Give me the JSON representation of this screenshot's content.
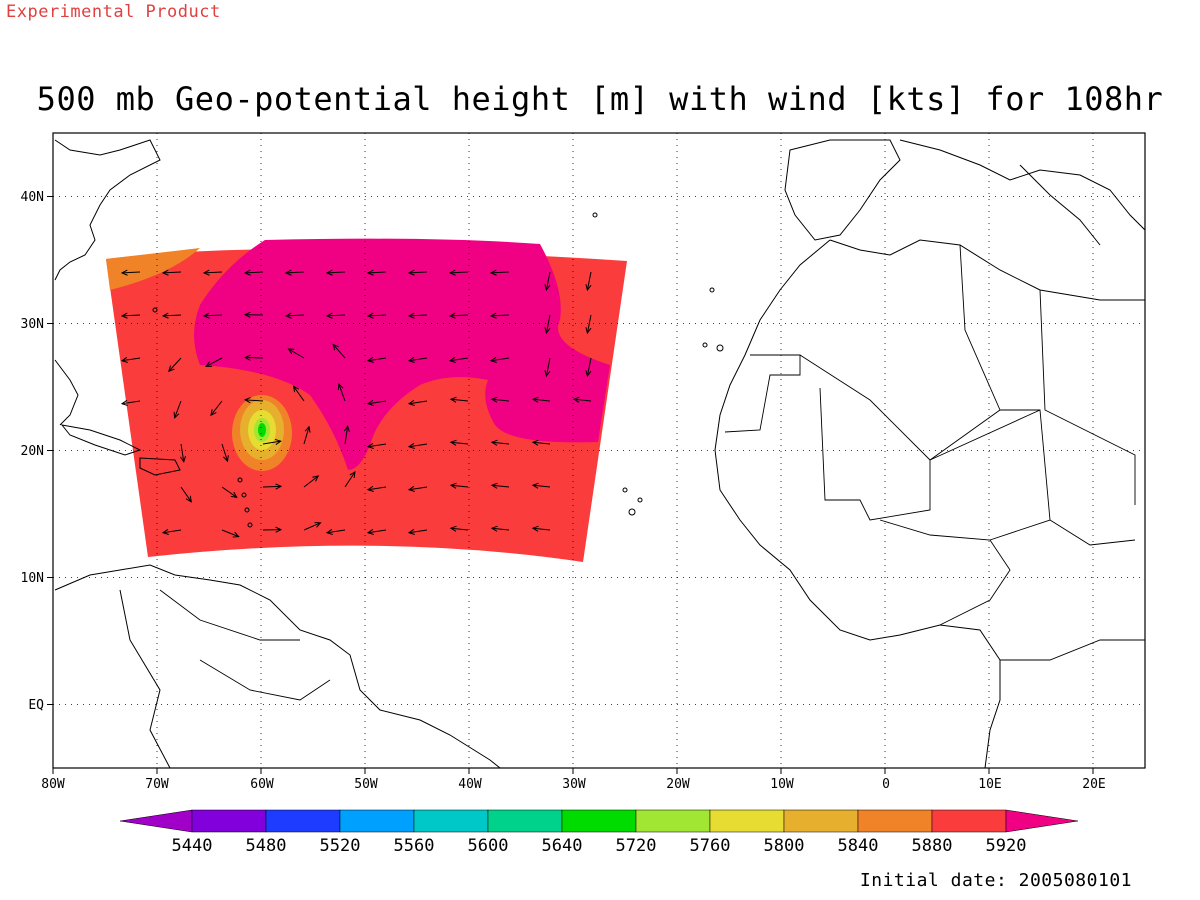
{
  "banner": "Experimental Product",
  "title": "500 mb Geo-potential height [m] with wind [kts] for 108hr",
  "footer": "Initial date: 2005080101",
  "axes": {
    "lon_labels": [
      "80W",
      "70W",
      "60W",
      "50W",
      "40W",
      "30W",
      "20W",
      "10W",
      "0",
      "10E",
      "20E"
    ],
    "lat_labels": [
      "40N",
      "30N",
      "20N",
      "10N",
      "EQ"
    ]
  },
  "colorbar": {
    "labels": [
      "5440",
      "5480",
      "5520",
      "5560",
      "5600",
      "5640",
      "5720",
      "5760",
      "5800",
      "5840",
      "5880",
      "5920"
    ],
    "colors": [
      "#a000c8",
      "#8200dc",
      "#1e3cff",
      "#00a0ff",
      "#00c8c8",
      "#00d28c",
      "#00dc00",
      "#a0e632",
      "#e6dc32",
      "#e6af2d",
      "#f08228",
      "#fa3c3c",
      "#f00082"
    ]
  },
  "field": {
    "dominant_color": "#fa3c3c",
    "high_color": "#f00082",
    "edge_color": "#f08228",
    "vortex": {
      "lon": -60,
      "lat": 21.5,
      "colors": [
        "#f08228",
        "#e6af2d",
        "#e6dc32",
        "#a0e632",
        "#00dc00"
      ]
    }
  }
}
